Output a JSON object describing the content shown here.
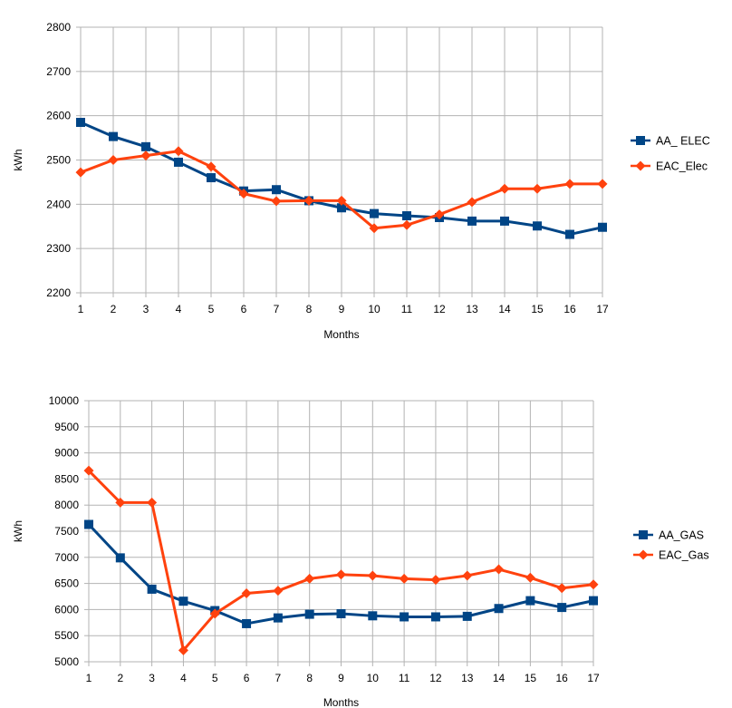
{
  "chart_data": [
    {
      "type": "line",
      "x": [
        1,
        2,
        3,
        4,
        5,
        6,
        7,
        8,
        9,
        10,
        11,
        12,
        13,
        14,
        15,
        16,
        17
      ],
      "xlabel": "Months",
      "ylabel": "kWh",
      "ylim": [
        2200,
        2800
      ],
      "yticks": [
        2200,
        2300,
        2400,
        2500,
        2600,
        2700,
        2800
      ],
      "grid": true,
      "legend_position": "right",
      "series": [
        {
          "name": "AA_ ELEC",
          "color": "#004586",
          "marker": "square",
          "values": [
            2585,
            2553,
            2530,
            2495,
            2460,
            2430,
            2433,
            2408,
            2392,
            2379,
            2374,
            2370,
            2362,
            2362,
            2351,
            2332,
            2348
          ]
        },
        {
          "name": "EAC_Elec",
          "color": "#ff420e",
          "marker": "diamond",
          "values": [
            2472,
            2500,
            2510,
            2520,
            2485,
            2424,
            2407,
            2408,
            2408,
            2346,
            2353,
            2377,
            2405,
            2435,
            2435,
            2446,
            2446
          ]
        }
      ]
    },
    {
      "type": "line",
      "x": [
        1,
        2,
        3,
        4,
        5,
        6,
        7,
        8,
        9,
        10,
        11,
        12,
        13,
        14,
        15,
        16,
        17
      ],
      "xlabel": "Months",
      "ylabel": "kWh",
      "ylim": [
        5000,
        10000
      ],
      "yticks": [
        5000,
        5500,
        6000,
        6500,
        7000,
        7500,
        8000,
        8500,
        9000,
        9500,
        10000
      ],
      "grid": true,
      "legend_position": "right",
      "series": [
        {
          "name": "AA_GAS",
          "color": "#004586",
          "marker": "square",
          "values": [
            7630,
            6990,
            6390,
            6160,
            5980,
            5730,
            5840,
            5910,
            5920,
            5880,
            5860,
            5860,
            5870,
            6020,
            6170,
            6040,
            6170
          ]
        },
        {
          "name": "EAC_Gas",
          "color": "#ff420e",
          "marker": "diamond",
          "values": [
            8660,
            8050,
            8050,
            5220,
            5920,
            6310,
            6360,
            6590,
            6670,
            6650,
            6590,
            6570,
            6650,
            6770,
            6610,
            6410,
            6480
          ]
        }
      ]
    }
  ]
}
